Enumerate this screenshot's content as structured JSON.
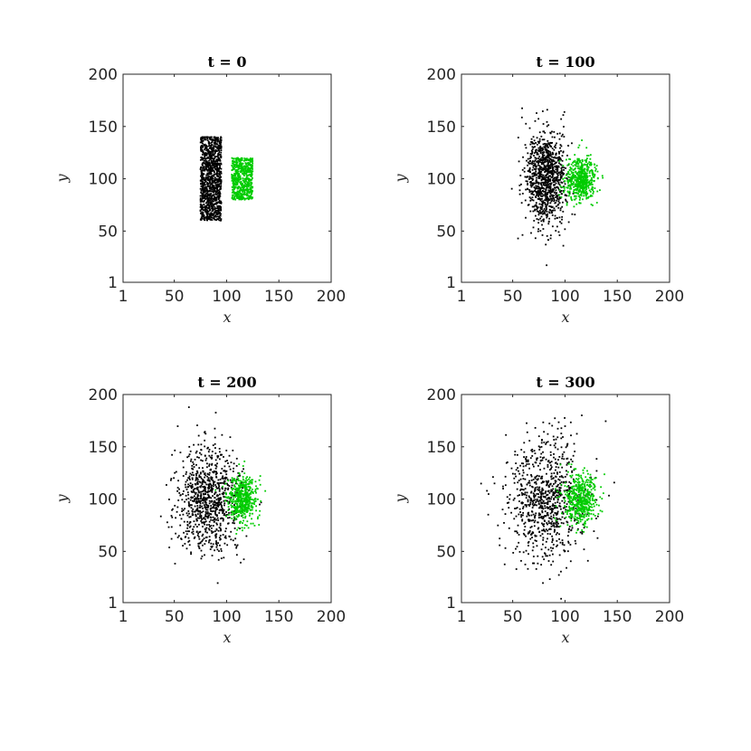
{
  "chart_data": [
    {
      "type": "scatter",
      "title": "t = 0",
      "xlabel": "x",
      "ylabel": "y",
      "xlim": [
        1,
        200
      ],
      "ylim": [
        1,
        200
      ],
      "xticks": [
        1,
        50,
        100,
        150,
        200
      ],
      "yticks": [
        1,
        50,
        100,
        150,
        200
      ],
      "grid": false,
      "series": [
        {
          "color": "#000000",
          "distribution": "uniform",
          "x_range": [
            75,
            95
          ],
          "y_range": [
            60,
            140
          ],
          "count": 1100
        },
        {
          "color": "#00cc00",
          "distribution": "uniform",
          "x_range": [
            105,
            125
          ],
          "y_range": [
            80,
            120
          ],
          "count": 600
        }
      ]
    },
    {
      "type": "scatter",
      "title": "t = 100",
      "xlabel": "x",
      "ylabel": "y",
      "xlim": [
        1,
        200
      ],
      "ylim": [
        1,
        200
      ],
      "xticks": [
        1,
        50,
        100,
        150,
        200
      ],
      "yticks": [
        1,
        50,
        100,
        150,
        200
      ],
      "grid": false,
      "series": [
        {
          "color": "#000000",
          "distribution": "gaussian",
          "center": [
            82,
            100
          ],
          "spread": [
            10,
            22
          ],
          "count": 1000
        },
        {
          "color": "#00cc00",
          "distribution": "gaussian",
          "center": [
            115,
            100
          ],
          "spread": [
            7,
            11
          ],
          "count": 550
        }
      ]
    },
    {
      "type": "scatter",
      "title": "t = 200",
      "xlabel": "x",
      "ylabel": "y",
      "xlim": [
        1,
        200
      ],
      "ylim": [
        1,
        200
      ],
      "xticks": [
        1,
        50,
        100,
        150,
        200
      ],
      "yticks": [
        1,
        50,
        100,
        150,
        200
      ],
      "grid": false,
      "series": [
        {
          "color": "#000000",
          "distribution": "gaussian",
          "center": [
            82,
            100
          ],
          "spread": [
            15,
            25
          ],
          "count": 900
        },
        {
          "color": "#00cc00",
          "distribution": "gaussian",
          "center": [
            115,
            100
          ],
          "spread": [
            7,
            11
          ],
          "count": 500
        }
      ]
    },
    {
      "type": "scatter",
      "title": "t = 300",
      "xlabel": "x",
      "ylabel": "y",
      "xlim": [
        1,
        200
      ],
      "ylim": [
        1,
        200
      ],
      "xticks": [
        1,
        50,
        100,
        150,
        200
      ],
      "yticks": [
        1,
        50,
        100,
        150,
        200
      ],
      "grid": false,
      "series": [
        {
          "color": "#000000",
          "distribution": "gaussian",
          "center": [
            82,
            100
          ],
          "spread": [
            19,
            29
          ],
          "count": 850
        },
        {
          "color": "#00cc00",
          "distribution": "gaussian",
          "center": [
            115,
            100
          ],
          "spread": [
            8,
            12
          ],
          "count": 500
        }
      ]
    }
  ]
}
